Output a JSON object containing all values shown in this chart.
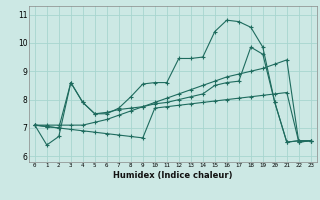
{
  "xlabel": "Humidex (Indice chaleur)",
  "background_color": "#cce8e4",
  "grid_color": "#a8d5cf",
  "line_color": "#1e6b5e",
  "xlim": [
    -0.5,
    23.5
  ],
  "ylim": [
    5.8,
    11.3
  ],
  "xticks": [
    0,
    1,
    2,
    3,
    4,
    5,
    6,
    7,
    8,
    9,
    10,
    11,
    12,
    13,
    14,
    15,
    16,
    17,
    18,
    19,
    20,
    21,
    22,
    23
  ],
  "yticks": [
    6,
    7,
    8,
    9,
    10,
    11
  ],
  "series": [
    [
      7.1,
      6.4,
      6.7,
      8.6,
      7.9,
      7.5,
      7.5,
      7.7,
      8.1,
      8.55,
      8.6,
      8.6,
      9.45,
      9.45,
      9.5,
      10.4,
      10.8,
      10.75,
      10.55,
      9.85,
      7.9,
      6.5,
      6.55,
      6.55
    ],
    [
      7.1,
      7.05,
      7.0,
      6.95,
      6.9,
      6.85,
      6.8,
      6.75,
      6.7,
      6.65,
      7.7,
      7.75,
      7.8,
      7.85,
      7.9,
      7.95,
      8.0,
      8.05,
      8.1,
      8.15,
      8.2,
      8.25,
      6.5,
      6.55
    ],
    [
      7.1,
      7.05,
      7.0,
      8.6,
      7.9,
      7.5,
      7.55,
      7.65,
      7.7,
      7.75,
      7.85,
      7.9,
      8.0,
      8.1,
      8.2,
      8.5,
      8.6,
      8.65,
      9.85,
      9.6,
      7.9,
      6.5,
      6.55,
      6.55
    ],
    [
      7.1,
      7.1,
      7.1,
      7.1,
      7.1,
      7.2,
      7.3,
      7.45,
      7.6,
      7.75,
      7.9,
      8.05,
      8.2,
      8.35,
      8.5,
      8.65,
      8.8,
      8.9,
      9.0,
      9.1,
      9.25,
      9.4,
      6.5,
      6.55
    ]
  ]
}
